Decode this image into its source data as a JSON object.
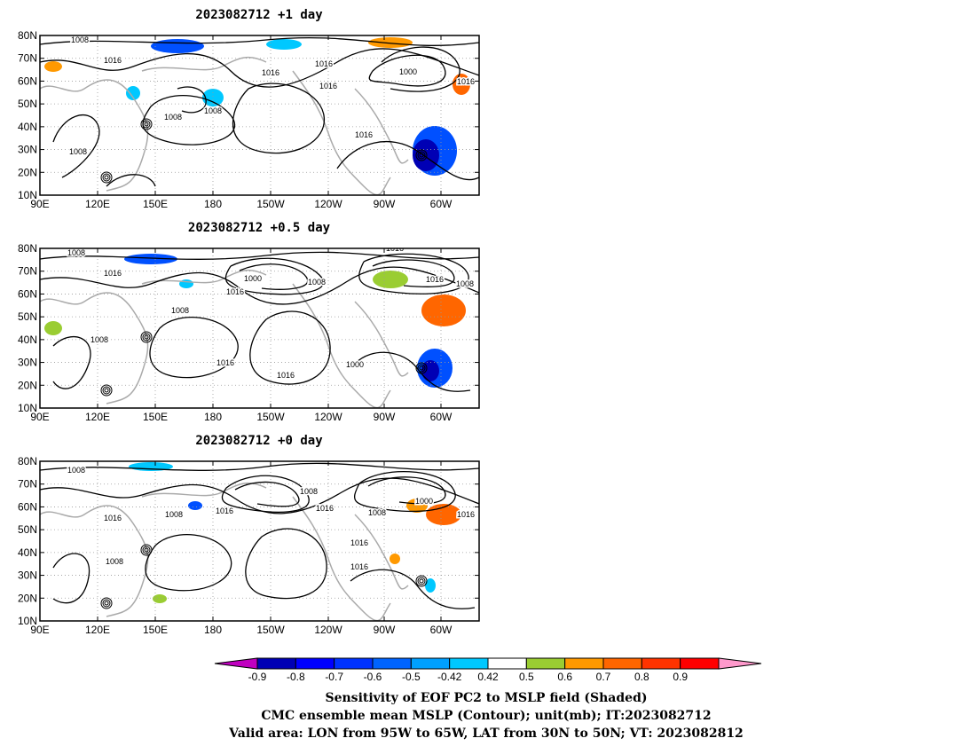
{
  "chart_data": {
    "type": "map",
    "panels": [
      {
        "title": "2023082712  +1 day",
        "lon_ticks": [
          "90E",
          "120E",
          "150E",
          "180",
          "150W",
          "120W",
          "90W",
          "60W"
        ],
        "lat_ticks": [
          "80N",
          "70N",
          "60N",
          "50N",
          "40N",
          "30N",
          "20N",
          "10N"
        ],
        "contour_labels": [
          "1008",
          "1016",
          "1008",
          "1016",
          "1008",
          "1016",
          "1016",
          "1000",
          "1016",
          "1016",
          "1008"
        ]
      },
      {
        "title": "2023082712  +0.5 day",
        "lon_ticks": [
          "90E",
          "120E",
          "150E",
          "180",
          "150W",
          "120W",
          "90W",
          "60W"
        ],
        "lat_ticks": [
          "80N",
          "70N",
          "60N",
          "50N",
          "40N",
          "30N",
          "20N",
          "10N"
        ],
        "contour_labels": [
          "1008",
          "1016",
          "1000",
          "1008",
          "1016",
          "1008",
          "1016",
          "1016",
          "1008",
          "1000",
          "1016",
          "1008",
          "1016"
        ]
      },
      {
        "title": "2023082712  +0 day",
        "lon_ticks": [
          "90E",
          "120E",
          "150E",
          "180",
          "150W",
          "120W",
          "90W",
          "60W"
        ],
        "lat_ticks": [
          "80N",
          "70N",
          "60N",
          "50N",
          "40N",
          "30N",
          "20N",
          "10N"
        ],
        "contour_labels": [
          "1008",
          "1016",
          "1008",
          "1016",
          "1008",
          "1016",
          "1016",
          "1008",
          "1000",
          "1016",
          "1016",
          "1008"
        ]
      }
    ],
    "colorbar": {
      "labels": [
        "-0.9",
        "-0.8",
        "-0.7",
        "-0.6",
        "-0.5",
        "-0.42",
        "0.42",
        "0.5",
        "0.6",
        "0.7",
        "0.8",
        "0.9"
      ],
      "colors": [
        "#c000c0",
        "#0000b4",
        "#0000ff",
        "#0032ff",
        "#0064ff",
        "#00a0ff",
        "#00c8ff",
        "#ffffff",
        "#9acd32",
        "#ff9900",
        "#ff6600",
        "#ff3300",
        "#ff0000",
        "#ff99cc"
      ]
    },
    "caption": [
      "Sensitivity of EOF PC2 to MSLP field (Shaded)",
      "CMC ensemble mean MSLP (Contour); unit(mb); IT:2023082712",
      "Valid area: LON from 95W to 65W, LAT from 30N to 50N; VT: 2023082812"
    ]
  }
}
